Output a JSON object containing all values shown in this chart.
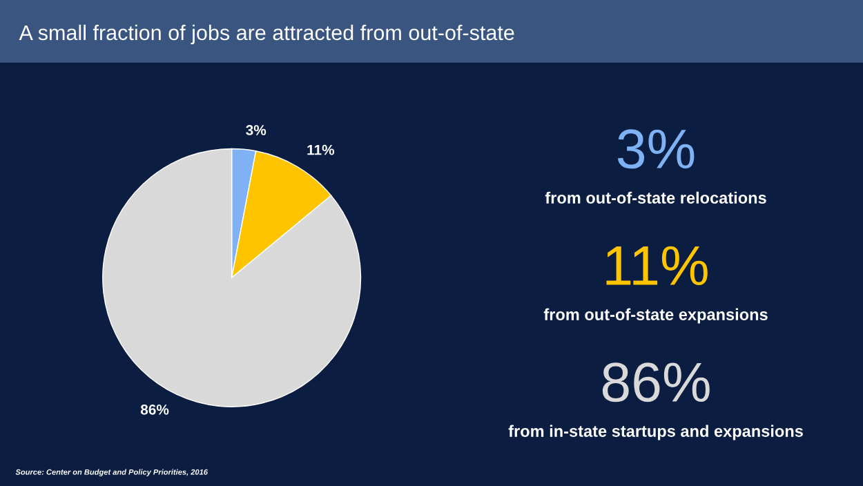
{
  "chart_data": [
    {
      "type": "pie",
      "title": "A small fraction of jobs are attracted from out-of-state",
      "categories": [
        null,
        null,
        null
      ],
      "values": [
        3,
        11,
        86
      ],
      "colors": [
        "#7fb2f5",
        "#ffc400",
        "#d9d9d9"
      ],
      "value_labels": [
        "3%",
        "11%",
        "86%"
      ],
      "annotations": [
        "Source: Center on Budget and Policy Priorities, 2016"
      ]
    },
    {
      "type": "other",
      "annotations": [
        "3%",
        "from out-of-state relocations",
        "11%",
        "from out-of-state expansions",
        "86%",
        "from in-state startups and expansions"
      ]
    }
  ]
}
